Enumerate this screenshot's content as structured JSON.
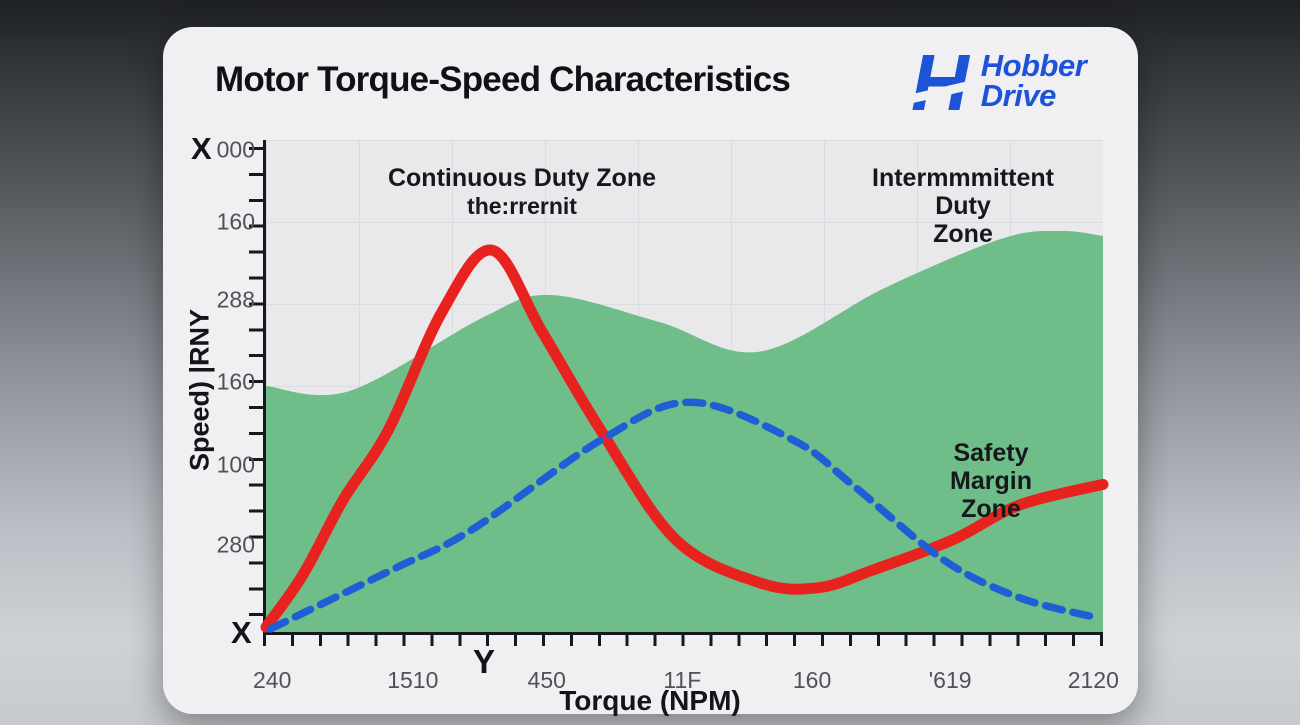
{
  "header": {
    "title": "Motor Torque-Speed Characteristics"
  },
  "logo": {
    "mark_letter": "H",
    "name_line1": "Hobber",
    "name_line2": "Drive",
    "color": "#1d53d8"
  },
  "chart_data": {
    "type": "area",
    "title": "Motor Torque-Speed Characteristics",
    "xlabel": "Torque (NPM)",
    "ylabel": "Speed) |RNY",
    "grid": "on",
    "legend": "none",
    "axis_decor_labels": {
      "top_left": "X",
      "origin": "X",
      "x_axis_mid": "Y"
    },
    "x_ticks": [
      {
        "label": "240",
        "pos": 1.1
      },
      {
        "label": "1510",
        "pos": 17.9
      },
      {
        "label": "450",
        "pos": 33.9
      },
      {
        "label": "11F",
        "pos": 50.1
      },
      {
        "label": "160",
        "pos": 65.6
      },
      {
        "label": "'619",
        "pos": 82.1
      },
      {
        "label": "2120",
        "pos": 99.2
      }
    ],
    "y_ticks": [
      {
        "label": "000",
        "pos": 2.0
      },
      {
        "label": "160",
        "pos": 16.7
      },
      {
        "label": "288",
        "pos": 32.5
      },
      {
        "label": "160",
        "pos": 49.2
      },
      {
        "label": "100",
        "pos": 66.0
      },
      {
        "label": "280",
        "pos": 82.3
      }
    ],
    "annotations": [
      {
        "id": "continuous-duty",
        "lines": [
          "Continuous Duty Zone",
          "the:rrernit"
        ]
      },
      {
        "id": "intermittent-duty",
        "lines": [
          "Intermmmittent Duty",
          "Zone"
        ]
      },
      {
        "id": "safety-margin",
        "lines": [
          "Safety Margin",
          "Zone"
        ]
      }
    ],
    "axes_value_range": {
      "x_pct": [
        0,
        100
      ],
      "y_pct": [
        0,
        100
      ]
    },
    "series": [
      {
        "name": "safety-margin-area",
        "type": "area",
        "color": "#6fbe8a",
        "points": [
          [
            0,
            50
          ],
          [
            10,
            49
          ],
          [
            26,
            64
          ],
          [
            34,
            68.5
          ],
          [
            47,
            63
          ],
          [
            59,
            57
          ],
          [
            74,
            70
          ],
          [
            88,
            80
          ],
          [
            95,
            81.5
          ],
          [
            100,
            80.5
          ]
        ]
      },
      {
        "name": "red-torque-curve",
        "type": "line",
        "style": "solid",
        "color": "#e8231f",
        "width": 11,
        "points": [
          [
            0,
            1
          ],
          [
            4.4,
            11.6
          ],
          [
            9.2,
            26.8
          ],
          [
            14.6,
            41
          ],
          [
            21,
            65
          ],
          [
            27,
            77.6
          ],
          [
            33,
            61
          ],
          [
            40,
            41
          ],
          [
            49,
            18.7
          ],
          [
            59,
            10
          ],
          [
            66,
            9
          ],
          [
            72.5,
            12.6
          ],
          [
            82,
            18.7
          ],
          [
            90,
            25.8
          ],
          [
            100,
            30
          ]
        ]
      },
      {
        "name": "blue-speed-curve",
        "type": "line",
        "style": "dashed",
        "color": "#1f5fd6",
        "width": 7.5,
        "points": [
          [
            0.5,
            0.6
          ],
          [
            15,
            12.6
          ],
          [
            24.5,
            20.7
          ],
          [
            40,
            39
          ],
          [
            50.7,
            46.7
          ],
          [
            63,
            39
          ],
          [
            70,
            30
          ],
          [
            81,
            14.6
          ],
          [
            90,
            7
          ],
          [
            99,
            3
          ]
        ]
      }
    ]
  }
}
